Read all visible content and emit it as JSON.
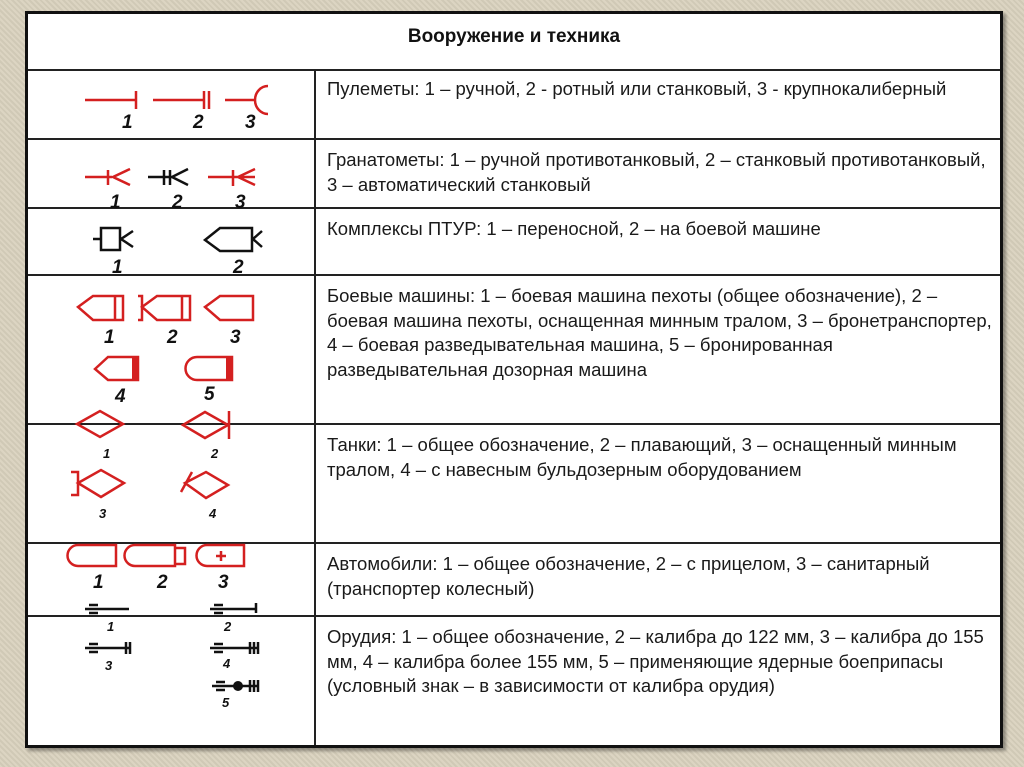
{
  "title": "Вооружение и техника",
  "colors": {
    "symbol_red": "#d42020",
    "symbol_black": "#111111"
  },
  "rows": [
    {
      "name": "machine-guns",
      "text": "Пулеметы: 1 – ручной, 2 -  ротный или станковый, 3 - крупнокалиберный",
      "labels": [
        "1",
        "2",
        "3"
      ]
    },
    {
      "name": "grenade-launchers",
      "text": "Гранатометы: 1 – ручной противотанковый, 2 – станковый противотанковый, 3 – автоматический станковый",
      "labels": [
        "1",
        "2",
        "3"
      ]
    },
    {
      "name": "atgm",
      "text": "Комплексы ПТУР: 1 – переносной, 2 – на боевой машине",
      "labels": [
        "1",
        "2"
      ]
    },
    {
      "name": "combat-vehicles",
      "text": "Боевые машины: 1 – боевая машина пехоты (общее обозначение), 2 – боевая машина пехоты, оснащенная минным тралом, 3 – бронетранспортер, 4 – боевая разведывательная машина, 5 – бронированная разведывательная дозорная машина",
      "labels": [
        "1",
        "2",
        "3",
        "4",
        "5"
      ]
    },
    {
      "name": "tanks",
      "text": "Танки: 1 – общее обозначение, 2 – плавающий, 3 – оснащенный минным тралом, 4 – с навесным бульдозерным оборудованием",
      "labels": [
        "1",
        "2",
        "3",
        "4"
      ]
    },
    {
      "name": "automobiles",
      "text": "Автомобили: 1 – общее обозначение, 2 – с прицелом, 3 – санитарный (транспортер колесный)",
      "labels": [
        "1",
        "2",
        "3"
      ]
    },
    {
      "name": "artillery",
      "text": "Орудия: 1 – общее обозначение, 2 – калибра до 122 мм, 3 – калибра до 155 мм, 4 – калибра более 155 мм, 5 – применяющие ядерные боеприпасы (условный знак – в зависимости от калибра орудия)",
      "labels": [
        "1",
        "2",
        "3",
        "4",
        "5"
      ]
    }
  ]
}
